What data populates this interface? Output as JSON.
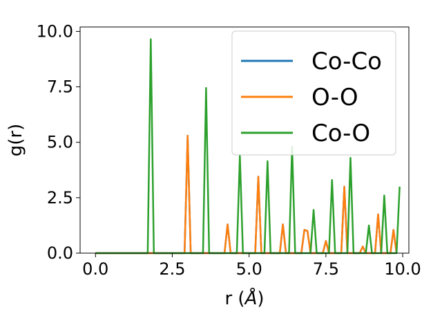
{
  "chart_data": {
    "type": "line",
    "xlabel": "r (",
    "xlabel_unit": "Å",
    "xlabel_close": ")",
    "ylabel": "g(r)",
    "xlim": [
      -0.5,
      10.2
    ],
    "ylim": [
      0,
      10.2
    ],
    "xticks": [
      0.0,
      2.5,
      5.0,
      7.5,
      10.0
    ],
    "xtick_labels": [
      "0.0",
      "2.5",
      "5.0",
      "7.5",
      "10.0"
    ],
    "yticks": [
      0.0,
      2.5,
      5.0,
      7.5,
      10.0
    ],
    "ytick_labels": [
      "0.0",
      "2.5",
      "5.0",
      "7.5",
      "10.0"
    ],
    "legend_position": "upper-right",
    "grid": false,
    "series": [
      {
        "name": "Co-Co",
        "color": "#1f77b4",
        "x": [
          0.0,
          2.9,
          3.0,
          3.1,
          4.2,
          4.3,
          4.4,
          5.2,
          5.3,
          5.4,
          6.0,
          6.1,
          6.2,
          6.7,
          6.8,
          6.9,
          7.0,
          7.4,
          7.5,
          7.6,
          8.0,
          8.1,
          8.2,
          8.6,
          8.7,
          8.8,
          9.1,
          9.2,
          9.3,
          9.6,
          9.7,
          9.8
        ],
        "y": [
          0.0,
          0.0,
          5.3,
          0.0,
          0.0,
          1.3,
          0.0,
          0.0,
          3.45,
          0.0,
          0.0,
          1.3,
          0.0,
          0.0,
          1.05,
          1.0,
          0.0,
          0.0,
          0.55,
          0.0,
          0.0,
          3.0,
          0.0,
          0.0,
          0.3,
          0.0,
          0.0,
          1.75,
          0.0,
          0.0,
          1.05,
          0.0
        ]
      },
      {
        "name": "O-O",
        "color": "#ff7f0e",
        "x": [
          0.0,
          2.9,
          3.0,
          3.1,
          4.2,
          4.3,
          4.4,
          5.2,
          5.3,
          5.4,
          6.0,
          6.1,
          6.2,
          6.7,
          6.8,
          6.9,
          7.0,
          7.4,
          7.5,
          7.6,
          8.0,
          8.1,
          8.2,
          8.6,
          8.7,
          8.8,
          9.1,
          9.2,
          9.3,
          9.6,
          9.7,
          9.8
        ],
        "y": [
          0.0,
          0.0,
          5.3,
          0.0,
          0.0,
          1.3,
          0.0,
          0.0,
          3.45,
          0.0,
          0.0,
          1.3,
          0.0,
          0.0,
          1.05,
          1.0,
          0.0,
          0.0,
          0.55,
          0.0,
          0.0,
          3.0,
          0.0,
          0.0,
          0.3,
          0.0,
          0.0,
          1.75,
          0.0,
          0.0,
          1.05,
          0.0
        ]
      },
      {
        "name": "Co-O",
        "color": "#2ca02c",
        "x": [
          0.0,
          1.7,
          1.8,
          1.9,
          3.5,
          3.6,
          3.7,
          4.6,
          4.7,
          4.8,
          5.5,
          5.6,
          5.7,
          6.3,
          6.4,
          6.5,
          7.0,
          7.1,
          7.2,
          7.6,
          7.7,
          7.8,
          8.2,
          8.3,
          8.4,
          8.8,
          8.9,
          9.0,
          9.3,
          9.4,
          9.5,
          9.8,
          9.9
        ],
        "y": [
          0.0,
          0.0,
          9.65,
          0.0,
          0.0,
          7.45,
          0.0,
          0.0,
          4.4,
          0.0,
          0.0,
          4.15,
          0.0,
          0.0,
          4.8,
          0.0,
          0.0,
          1.95,
          0.0,
          0.0,
          3.3,
          0.0,
          0.0,
          4.3,
          0.0,
          0.0,
          1.25,
          0.0,
          0.0,
          2.6,
          0.0,
          0.0,
          3.0
        ]
      }
    ]
  }
}
